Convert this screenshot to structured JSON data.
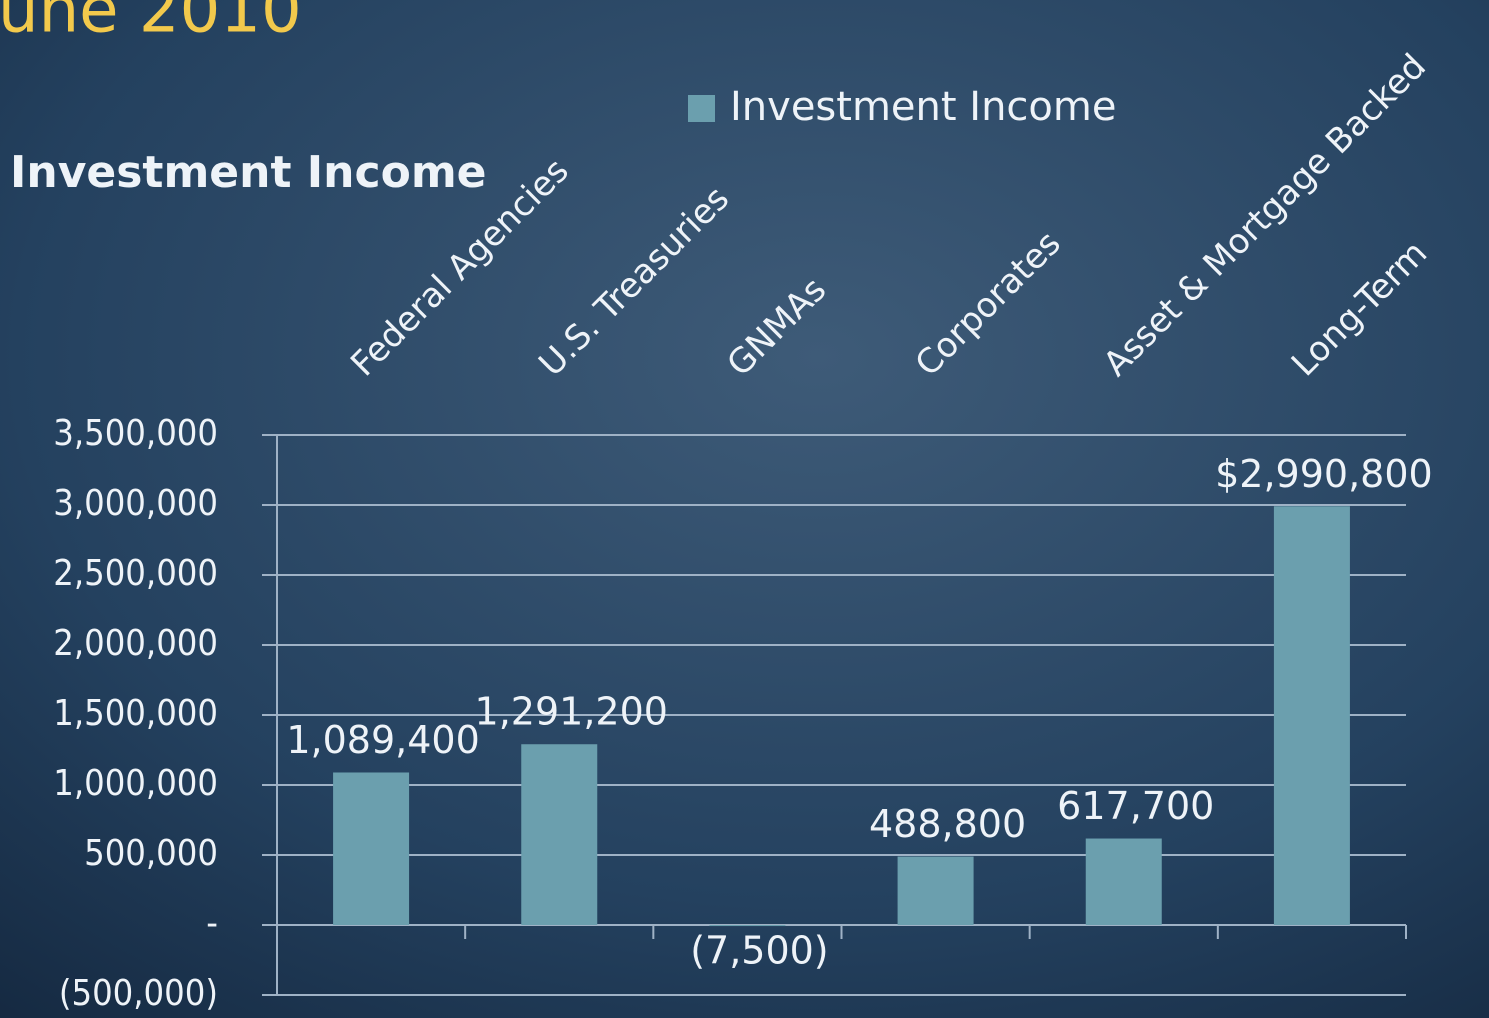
{
  "slide_title": "une 2010",
  "chart_data": {
    "type": "bar",
    "title": "Investment Income",
    "categories": [
      "Federal Agencies",
      "U.S. Treasuries",
      "GNMAs",
      "Corporates",
      "Asset & Mortgage Backed",
      "Long-Term"
    ],
    "series": [
      {
        "name": "Investment Income",
        "color": "#6b9fae",
        "values": [
          1089400,
          1291200,
          -7500,
          488800,
          617700,
          2990800
        ],
        "value_labels": [
          "1,089,400",
          "1,291,200",
          "(7,500)",
          "488,800",
          "617,700",
          "$2,990,800"
        ]
      }
    ],
    "ylim": [
      -500000,
      3500000
    ],
    "yticks": [
      {
        "value": -500000,
        "label": "(500,000)"
      },
      {
        "value": 0,
        "label": "-"
      },
      {
        "value": 500000,
        "label": "500,000"
      },
      {
        "value": 1000000,
        "label": "1,000,000"
      },
      {
        "value": 1500000,
        "label": "1,500,000"
      },
      {
        "value": 2000000,
        "label": "2,000,000"
      },
      {
        "value": 2500000,
        "label": "2,500,000"
      },
      {
        "value": 3000000,
        "label": "3,000,000"
      },
      {
        "value": 3500000,
        "label": "3,500,000"
      }
    ],
    "grid": true,
    "legend": "top"
  }
}
